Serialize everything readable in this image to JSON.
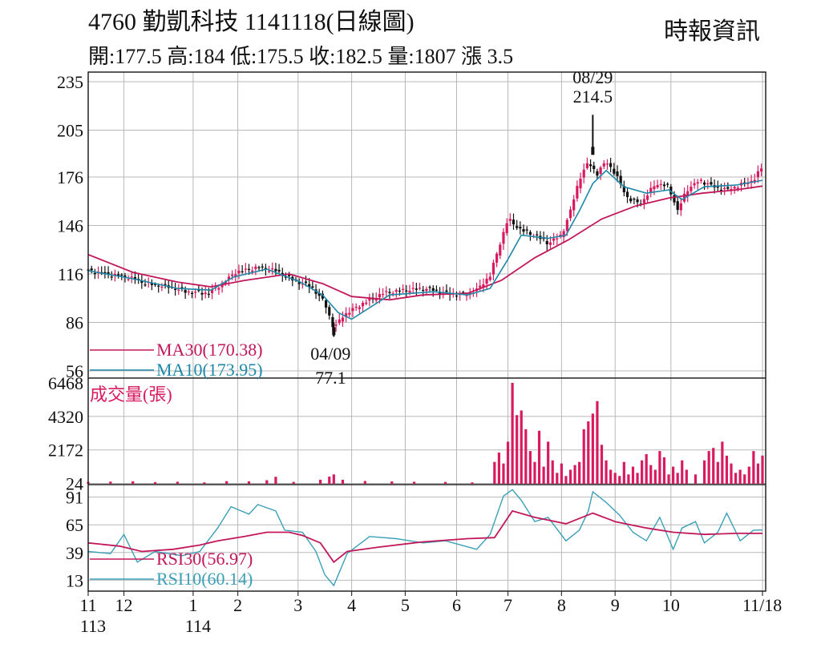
{
  "header": {
    "title": "4760  勤凱科技 1141118(日線圖)",
    "source": "時報資訊",
    "quote": "開:177.5 高:184 低:175.5 收:182.5 量:1807 漲 3.5"
  },
  "colors": {
    "up": "#d81b60",
    "down": "#111111",
    "ma30": "#c2185b",
    "ma10": "#1e88a8",
    "volume": "#d81b60",
    "rsi30": "#c2185b",
    "rsi10": "#3aa0b8",
    "grid": "#b8b8b8"
  },
  "chart_data": [
    {
      "type": "candlestick",
      "panel": "price",
      "y_ticks": [
        235,
        205,
        176,
        146,
        116,
        86,
        56
      ],
      "ylim": [
        56,
        235
      ],
      "x_tick_labels": [
        "11",
        "12",
        "1",
        "2",
        "3",
        "4",
        "5",
        "6",
        "7",
        "8",
        "9",
        "10",
        "11/18"
      ],
      "x_tick_sublabels": [
        "113",
        "",
        "114",
        "",
        "",
        "",
        "",
        "",
        "",
        "",
        "",
        "",
        ""
      ],
      "annotations": [
        {
          "date": "08/29",
          "value": "214.5"
        },
        {
          "date": "04/09",
          "value": "77.1"
        }
      ],
      "legend": [
        {
          "label": "MA30(170.38)",
          "series": "ma30"
        },
        {
          "label": "MA10(173.95)",
          "series": "ma10"
        }
      ],
      "close_path": [
        [
          0,
          118
        ],
        [
          8,
          116
        ],
        [
          18,
          114
        ],
        [
          26,
          110
        ],
        [
          36,
          108
        ],
        [
          44,
          105
        ],
        [
          54,
          104
        ],
        [
          60,
          110
        ],
        [
          66,
          117
        ],
        [
          76,
          120
        ],
        [
          84,
          118
        ],
        [
          92,
          112
        ],
        [
          100,
          108
        ],
        [
          106,
          98
        ],
        [
          110,
          82
        ],
        [
          114,
          90
        ],
        [
          122,
          97
        ],
        [
          132,
          104
        ],
        [
          142,
          106
        ],
        [
          152,
          107
        ],
        [
          160,
          104
        ],
        [
          168,
          103
        ],
        [
          174,
          106
        ],
        [
          180,
          115
        ],
        [
          184,
          133
        ],
        [
          188,
          150
        ],
        [
          194,
          143
        ],
        [
          200,
          140
        ],
        [
          206,
          135
        ],
        [
          212,
          140
        ],
        [
          216,
          155
        ],
        [
          220,
          175
        ],
        [
          224,
          185
        ],
        [
          228,
          178
        ],
        [
          232,
          186
        ],
        [
          236,
          178
        ],
        [
          242,
          162
        ],
        [
          248,
          160
        ],
        [
          254,
          172
        ],
        [
          260,
          170
        ],
        [
          264,
          155
        ],
        [
          268,
          168
        ],
        [
          274,
          174
        ],
        [
          280,
          170
        ],
        [
          286,
          168
        ],
        [
          292,
          171
        ],
        [
          298,
          174
        ],
        [
          302,
          182.5
        ]
      ],
      "series": [
        {
          "name": "MA30",
          "last": 170.38,
          "path": [
            [
              0,
              128
            ],
            [
              20,
              117
            ],
            [
              40,
              111
            ],
            [
              55,
              108
            ],
            [
              70,
              112
            ],
            [
              90,
              116
            ],
            [
              105,
              110
            ],
            [
              118,
              102
            ],
            [
              135,
              100
            ],
            [
              150,
              103
            ],
            [
              170,
              104
            ],
            [
              185,
              112
            ],
            [
              200,
              126
            ],
            [
              215,
              137
            ],
            [
              230,
              150
            ],
            [
              245,
              158
            ],
            [
              260,
              163
            ],
            [
              275,
              166
            ],
            [
              290,
              168
            ],
            [
              302,
              170.38
            ]
          ]
        },
        {
          "name": "MA10",
          "last": 173.95,
          "path": [
            [
              0,
              118
            ],
            [
              20,
              113
            ],
            [
              40,
              107
            ],
            [
              55,
              106
            ],
            [
              65,
              114
            ],
            [
              80,
              119
            ],
            [
              95,
              111
            ],
            [
              105,
              103
            ],
            [
              112,
              92
            ],
            [
              118,
              88
            ],
            [
              135,
              103
            ],
            [
              155,
              105
            ],
            [
              170,
              103
            ],
            [
              180,
              107
            ],
            [
              188,
              125
            ],
            [
              194,
              140
            ],
            [
              206,
              138
            ],
            [
              214,
              140
            ],
            [
              220,
              155
            ],
            [
              226,
              172
            ],
            [
              232,
              180
            ],
            [
              240,
              170
            ],
            [
              250,
              166
            ],
            [
              260,
              168
            ],
            [
              266,
              162
            ],
            [
              276,
              170
            ],
            [
              290,
              171
            ],
            [
              302,
              173.95
            ]
          ]
        }
      ],
      "highlights": [
        {
          "label": "high",
          "x": 226,
          "high": 214.5,
          "low": 190
        },
        {
          "label": "low",
          "x": 110,
          "high": 86,
          "low": 77.1
        }
      ]
    },
    {
      "type": "bar",
      "panel": "volume",
      "title": "成交量(張)",
      "y_ticks": [
        6468,
        4320,
        2172,
        24
      ],
      "ylim": [
        0,
        6468
      ],
      "values": [
        [
          0,
          120
        ],
        [
          10,
          140
        ],
        [
          20,
          160
        ],
        [
          30,
          110
        ],
        [
          40,
          130
        ],
        [
          52,
          90
        ],
        [
          62,
          170
        ],
        [
          72,
          160
        ],
        [
          80,
          230
        ],
        [
          84,
          450
        ],
        [
          92,
          120
        ],
        [
          104,
          260
        ],
        [
          108,
          460
        ],
        [
          110,
          600
        ],
        [
          114,
          260
        ],
        [
          124,
          180
        ],
        [
          136,
          150
        ],
        [
          146,
          130
        ],
        [
          160,
          120
        ],
        [
          172,
          90
        ],
        [
          182,
          1400
        ],
        [
          184,
          2000
        ],
        [
          186,
          1300
        ],
        [
          188,
          2700
        ],
        [
          190,
          6468
        ],
        [
          192,
          4400
        ],
        [
          194,
          4700
        ],
        [
          196,
          3500
        ],
        [
          198,
          2100
        ],
        [
          200,
          1400
        ],
        [
          202,
          3400
        ],
        [
          204,
          1100
        ],
        [
          206,
          2700
        ],
        [
          208,
          1500
        ],
        [
          210,
          700
        ],
        [
          212,
          1300
        ],
        [
          214,
          500
        ],
        [
          216,
          900
        ],
        [
          218,
          1200
        ],
        [
          220,
          1400
        ],
        [
          222,
          3500
        ],
        [
          224,
          4000
        ],
        [
          226,
          4500
        ],
        [
          228,
          5300
        ],
        [
          230,
          2500
        ],
        [
          232,
          1500
        ],
        [
          234,
          900
        ],
        [
          236,
          700
        ],
        [
          238,
          500
        ],
        [
          240,
          1400
        ],
        [
          242,
          600
        ],
        [
          244,
          1100
        ],
        [
          246,
          700
        ],
        [
          248,
          1500
        ],
        [
          250,
          1900
        ],
        [
          252,
          1200
        ],
        [
          254,
          900
        ],
        [
          256,
          2100
        ],
        [
          258,
          1700
        ],
        [
          260,
          600
        ],
        [
          262,
          1100
        ],
        [
          264,
          700
        ],
        [
          266,
          1500
        ],
        [
          268,
          900
        ],
        [
          272,
          600
        ],
        [
          276,
          1500
        ],
        [
          278,
          2100
        ],
        [
          280,
          2300
        ],
        [
          282,
          1400
        ],
        [
          284,
          2700
        ],
        [
          286,
          1800
        ],
        [
          288,
          1300
        ],
        [
          290,
          700
        ],
        [
          292,
          900
        ],
        [
          294,
          600
        ],
        [
          296,
          1100
        ],
        [
          298,
          2100
        ],
        [
          300,
          1300
        ],
        [
          302,
          1807
        ]
      ]
    },
    {
      "type": "line",
      "panel": "rsi",
      "y_ticks": [
        91,
        65,
        39,
        13
      ],
      "ylim": [
        5,
        99
      ],
      "legend": [
        {
          "label": "RSI30(56.97)",
          "series": "rsi30"
        },
        {
          "label": "RSI10(60.14)",
          "series": "rsi10"
        }
      ],
      "series": [
        {
          "name": "RSI30",
          "last": 56.97,
          "path": [
            [
              0,
              48
            ],
            [
              14,
              45
            ],
            [
              24,
              40
            ],
            [
              38,
              42
            ],
            [
              50,
              46
            ],
            [
              58,
              50
            ],
            [
              70,
              54
            ],
            [
              80,
              58
            ],
            [
              90,
              58
            ],
            [
              96,
              55
            ],
            [
              104,
              48
            ],
            [
              110,
              30
            ],
            [
              116,
              40
            ],
            [
              130,
              44
            ],
            [
              150,
              49
            ],
            [
              170,
              52
            ],
            [
              182,
              53
            ],
            [
              190,
              78
            ],
            [
              200,
              72
            ],
            [
              214,
              66
            ],
            [
              226,
              76
            ],
            [
              236,
              68
            ],
            [
              250,
              62
            ],
            [
              262,
              58
            ],
            [
              276,
              56
            ],
            [
              290,
              57
            ],
            [
              302,
              56.97
            ]
          ]
        },
        {
          "name": "RSI10",
          "last": 60.14,
          "path": [
            [
              0,
              40
            ],
            [
              10,
              38
            ],
            [
              16,
              56
            ],
            [
              22,
              30
            ],
            [
              30,
              40
            ],
            [
              42,
              36
            ],
            [
              50,
              40
            ],
            [
              58,
              62
            ],
            [
              64,
              82
            ],
            [
              72,
              75
            ],
            [
              76,
              84
            ],
            [
              84,
              78
            ],
            [
              88,
              60
            ],
            [
              96,
              58
            ],
            [
              102,
              40
            ],
            [
              106,
              18
            ],
            [
              110,
              8
            ],
            [
              116,
              38
            ],
            [
              126,
              54
            ],
            [
              138,
              52
            ],
            [
              150,
              48
            ],
            [
              160,
              50
            ],
            [
              174,
              42
            ],
            [
              180,
              56
            ],
            [
              184,
              80
            ],
            [
              186,
              92
            ],
            [
              190,
              98
            ],
            [
              194,
              88
            ],
            [
              200,
              68
            ],
            [
              206,
              72
            ],
            [
              214,
              50
            ],
            [
              220,
              60
            ],
            [
              224,
              78
            ],
            [
              226,
              96
            ],
            [
              232,
              86
            ],
            [
              238,
              74
            ],
            [
              244,
              58
            ],
            [
              250,
              50
            ],
            [
              256,
              72
            ],
            [
              262,
              42
            ],
            [
              266,
              62
            ],
            [
              272,
              68
            ],
            [
              276,
              48
            ],
            [
              282,
              58
            ],
            [
              286,
              76
            ],
            [
              292,
              50
            ],
            [
              298,
              60
            ],
            [
              302,
              60.14
            ]
          ]
        }
      ]
    }
  ]
}
